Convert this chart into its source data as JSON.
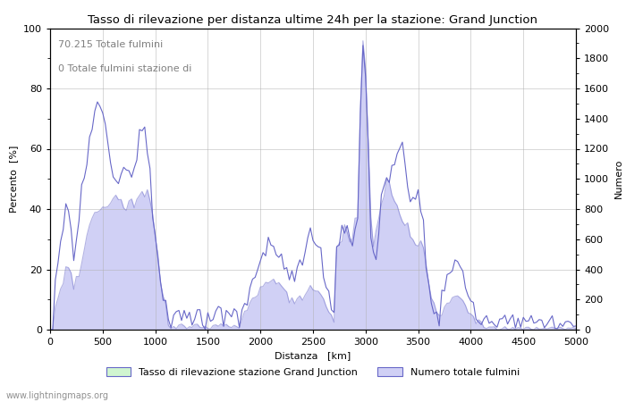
{
  "title": "Tasso di rilevazione per distanza ultime 24h per la stazione: Grand Junction",
  "xlabel": "Distanza   [km]",
  "ylabel_left": "Percento  [%]",
  "ylabel_right": "Numero",
  "annotation_line1": "70.215 Totale fulmini",
  "annotation_line2": "0 Totale fulmini stazione di",
  "legend_label1": "Tasso di rilevazione stazione Grand Junction",
  "legend_label2": "Numero totale fulmini",
  "watermark": "www.lightningmaps.org",
  "xlim": [
    0,
    5000
  ],
  "ylim_left": [
    0,
    100
  ],
  "ylim_right": [
    0,
    2000
  ],
  "xticks": [
    0,
    500,
    1000,
    1500,
    2000,
    2500,
    3000,
    3500,
    4000,
    4500,
    5000
  ],
  "yticks_left": [
    0,
    20,
    40,
    60,
    80,
    100
  ],
  "yticks_right": [
    0,
    200,
    400,
    600,
    800,
    1000,
    1200,
    1400,
    1600,
    1800,
    2000
  ],
  "fill_color_green": "#d0f5d0",
  "fill_color_blue": "#d0d0f5",
  "line_color": "#6868c8",
  "background_color": "#ffffff",
  "grid_color": "#b0b0b0",
  "title_color": "#000000",
  "annotation_color": "#808080",
  "figsize": [
    7.0,
    4.5
  ],
  "dpi": 100
}
